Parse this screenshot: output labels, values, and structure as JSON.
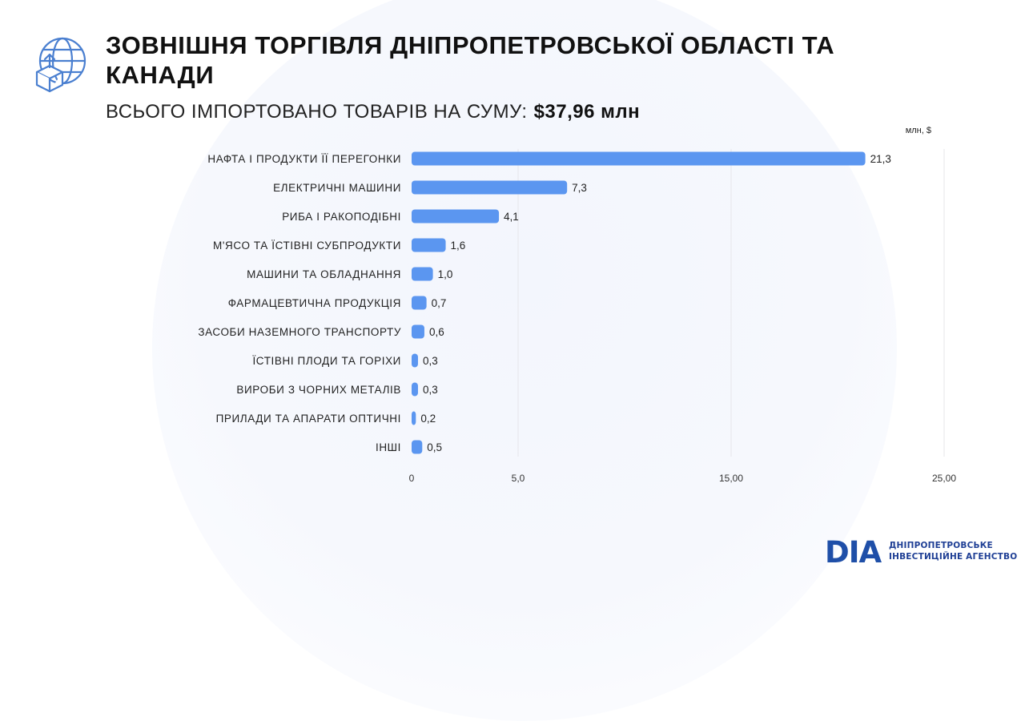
{
  "page": {
    "title": "ЗОВНІШНЯ ТОРГІВЛЯ ДНІПРОПЕТРОВСЬКОЇ ОБЛАСТІ ТА КАНАДИ",
    "subtitle_label": "ВСЬОГО ІМПОРТОВАНО ТОВАРІВ НА СУМУ:",
    "subtitle_value": "$37,96 млн",
    "icon": "globe-box-upload-icon"
  },
  "brand": {
    "logo_text": "DIA",
    "line1": "ДНІПРОПЕТРОВСЬКЕ",
    "line2": "ІНВЕСТИЦІЙНЕ АГЕНСТВО"
  },
  "colors": {
    "bar": "#5b96f0",
    "brand_blue": "#1f4fa8",
    "grid": "#e6e6ea",
    "icon": "#4a7fd0"
  },
  "chart_data": {
    "type": "bar",
    "orientation": "horizontal",
    "unit_label": "млн, $",
    "categories": [
      "НАФТА І ПРОДУКТИ ЇЇ ПЕРЕГОНКИ",
      "ЕЛЕКТРИЧНІ МАШИНИ",
      "РИБА І РАКОПОДІБНІ",
      "М'ЯСО ТА ЇСТІВНІ СУБПРОДУКТИ",
      "МАШИНИ ТА ОБЛАДНАННЯ",
      "ФАРМАЦЕВТИЧНА ПРОДУКЦІЯ",
      "ЗАСОБИ НАЗЕМНОГО ТРАНСПОРТУ",
      "ЇСТІВНІ ПЛОДИ ТА ГОРІХИ",
      "ВИРОБИ З ЧОРНИХ МЕТАЛІВ",
      "ПРИЛАДИ ТА АПАРАТИ ОПТИЧНІ",
      "ІНШІ"
    ],
    "values": [
      21.3,
      7.3,
      4.1,
      1.6,
      1.0,
      0.7,
      0.6,
      0.3,
      0.3,
      0.2,
      0.5
    ],
    "value_labels": [
      "21,3",
      "7,3",
      "4,1",
      "1,6",
      "1,0",
      "0,7",
      "0,6",
      "0,3",
      "0,3",
      "0,2",
      "0,5"
    ],
    "x_ticks": [
      0,
      5,
      15,
      25
    ],
    "x_tick_labels": [
      "0",
      "5,0",
      "15,00",
      "25,00"
    ],
    "xlim": [
      0,
      25
    ],
    "grid": true,
    "legend": false
  }
}
